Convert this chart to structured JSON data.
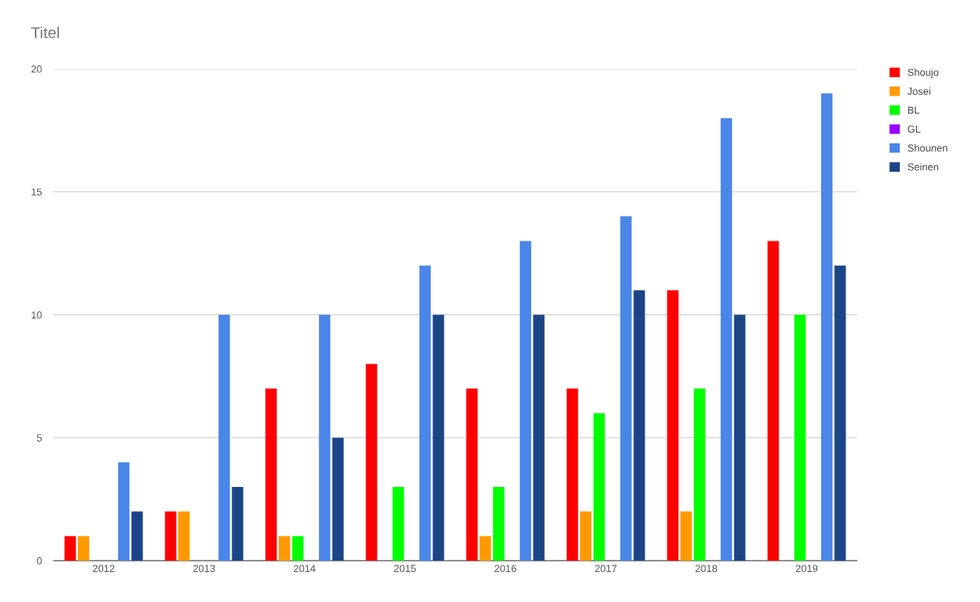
{
  "chart_data": {
    "type": "bar",
    "title": "Titel",
    "categories": [
      "2012",
      "2013",
      "2014",
      "2015",
      "2016",
      "2017",
      "2018",
      "2019"
    ],
    "series": [
      {
        "name": "Shoujo",
        "color": "#ff0000",
        "values": [
          1,
          2,
          7,
          8,
          7,
          7,
          11,
          13
        ]
      },
      {
        "name": "Josei",
        "color": "#ff9900",
        "values": [
          1,
          2,
          1,
          0,
          1,
          2,
          2,
          0
        ]
      },
      {
        "name": "BL",
        "color": "#00ff00",
        "values": [
          0,
          0,
          1,
          3,
          3,
          6,
          7,
          10
        ]
      },
      {
        "name": "GL",
        "color": "#9900ff",
        "values": [
          0,
          0,
          0,
          0,
          0,
          0,
          0,
          0
        ]
      },
      {
        "name": "Shounen",
        "color": "#4a86e8",
        "values": [
          4,
          10,
          10,
          12,
          13,
          14,
          18,
          19
        ]
      },
      {
        "name": "Seinen",
        "color": "#1c4587",
        "values": [
          2,
          3,
          5,
          10,
          10,
          11,
          10,
          12
        ]
      }
    ],
    "ylim": [
      0,
      20
    ],
    "yticks": [
      0,
      5,
      10,
      15,
      20
    ],
    "grid": "y",
    "legend": "right"
  }
}
